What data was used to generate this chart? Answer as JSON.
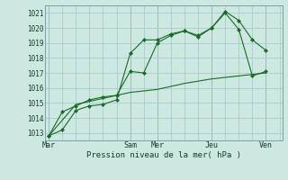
{
  "bg_color": "#cce8e0",
  "grid_color": "#aacccc",
  "line_color": "#1a6b2a",
  "marker_color": "#1a6b2a",
  "title": "Pression niveau de la mer( hPa )",
  "ylabel_ticks": [
    1013,
    1014,
    1015,
    1016,
    1017,
    1018,
    1019,
    1020,
    1021
  ],
  "xtick_labels": [
    "Mar",
    "Sam",
    "Mer",
    "Jeu",
    "Ven"
  ],
  "xtick_positions": [
    0,
    6,
    8,
    12,
    16
  ],
  "ylim": [
    1012.5,
    1021.5
  ],
  "xlim": [
    -0.3,
    17.2
  ],
  "line1_x": [
    0,
    1,
    2,
    3,
    4,
    5,
    6,
    7,
    8,
    9,
    10,
    11,
    12,
    13,
    14,
    15,
    16
  ],
  "line1_y": [
    1012.8,
    1013.2,
    1014.5,
    1014.8,
    1014.9,
    1015.2,
    1018.3,
    1019.2,
    1019.2,
    1019.6,
    1019.8,
    1019.5,
    1020.0,
    1021.1,
    1020.5,
    1019.2,
    1018.5
  ],
  "line2_x": [
    0,
    1,
    2,
    3,
    4,
    5,
    6,
    7,
    8,
    9,
    10,
    11,
    12,
    13,
    14,
    15,
    16
  ],
  "line2_y": [
    1012.8,
    1014.4,
    1014.8,
    1015.2,
    1015.4,
    1015.5,
    1017.1,
    1017.0,
    1019.0,
    1019.5,
    1019.8,
    1019.4,
    1020.0,
    1021.0,
    1019.9,
    1016.8,
    1017.1
  ],
  "line3_x": [
    0,
    2,
    4,
    6,
    8,
    10,
    12,
    14,
    16
  ],
  "line3_y": [
    1012.8,
    1014.9,
    1015.3,
    1015.7,
    1015.9,
    1016.3,
    1016.6,
    1016.8,
    1017.0
  ],
  "vline_positions": [
    0,
    6,
    8,
    12,
    16
  ],
  "spine_color": "#80a0a0",
  "title_fontsize": 6.5,
  "tick_fontsize": 5.5,
  "xtick_fontsize": 6.0
}
